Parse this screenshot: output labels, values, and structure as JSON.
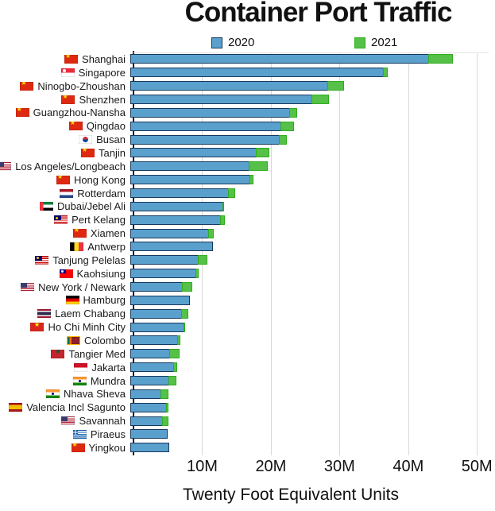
{
  "title": "Container Port Traffic",
  "xlabel": "Twenty Foot Equivalent Units",
  "legend": [
    {
      "label": "2020",
      "color": "#5aa0cd",
      "border": "#17395e"
    },
    {
      "label": "2021",
      "color": "#56c048",
      "border": "#2fae1e"
    }
  ],
  "colors": {
    "bar_2020_fill": "#5aa0cd",
    "bar_2020_border": "#17395e",
    "bar_2021_fill": "#56c048",
    "bar_2021_border": "#2fae1e",
    "gridline": "#d8d8d8",
    "axis_line": "#222222"
  },
  "chart_data": {
    "type": "bar",
    "orientation": "horizontal",
    "title": "Container Port Traffic",
    "xlabel": "Twenty Foot Equivalent Units",
    "unit": "millions of TEU",
    "legend_position": "top",
    "series_names": [
      "2020",
      "2021"
    ],
    "note": "2021 shown as green extension beyond 2020 bar when traffic grew",
    "xlim": [
      0,
      52.6
    ],
    "x_ticks": [
      {
        "label": "10M",
        "value": 10
      },
      {
        "label": "20M",
        "value": 20
      },
      {
        "label": "30M",
        "value": 30
      },
      {
        "label": "40M",
        "value": 40
      },
      {
        "label": "50M",
        "value": 50
      }
    ],
    "ports": [
      {
        "name": "Shanghai",
        "flag": "china",
        "v2020": 43.5,
        "v2021": 47.0
      },
      {
        "name": "Singapore",
        "flag": "singapore",
        "v2020": 36.9,
        "v2021": 37.5
      },
      {
        "name": "Ninogbo-Zhoushan",
        "flag": "china",
        "v2020": 28.8,
        "v2021": 31.1
      },
      {
        "name": "Shenzhen",
        "flag": "china",
        "v2020": 26.5,
        "v2021": 28.9
      },
      {
        "name": "Guangzhou-Nansha",
        "flag": "china",
        "v2020": 23.2,
        "v2021": 24.3
      },
      {
        "name": "Qingdao",
        "flag": "china",
        "v2020": 22.0,
        "v2021": 23.8
      },
      {
        "name": "Busan",
        "flag": "south-korea",
        "v2020": 21.8,
        "v2021": 22.8
      },
      {
        "name": "Tanjin",
        "flag": "china",
        "v2020": 18.4,
        "v2021": 20.3
      },
      {
        "name": "Los Angeles/Longbeach",
        "flag": "usa",
        "v2020": 17.3,
        "v2021": 20.0
      },
      {
        "name": "Hong Kong",
        "flag": "china",
        "v2020": 17.5,
        "v2021": 17.9
      },
      {
        "name": "Rotterdam",
        "flag": "netherlands",
        "v2020": 14.4,
        "v2021": 15.3
      },
      {
        "name": "Dubai/Jebel Ali",
        "flag": "uae",
        "v2020": 13.5,
        "v2021": 13.7
      },
      {
        "name": "Pert Kelang",
        "flag": "malaysia",
        "v2020": 13.2,
        "v2021": 13.8
      },
      {
        "name": "Xiamen",
        "flag": "china",
        "v2020": 11.4,
        "v2021": 12.1
      },
      {
        "name": "Antwerp",
        "flag": "belgium",
        "v2020": 12.0,
        "v2021": 12.0
      },
      {
        "name": "Tanjung Pelelas",
        "flag": "malaysia",
        "v2020": 9.9,
        "v2021": 11.2
      },
      {
        "name": "Kaohsiung",
        "flag": "taiwan",
        "v2020": 9.6,
        "v2021": 9.9
      },
      {
        "name": "New York / Newark",
        "flag": "usa",
        "v2020": 7.6,
        "v2021": 9.0
      },
      {
        "name": "Hamburg",
        "flag": "germany",
        "v2020": 8.7,
        "v2021": 8.7
      },
      {
        "name": "Laem Chabang",
        "flag": "thailand",
        "v2020": 7.5,
        "v2021": 8.5
      },
      {
        "name": "Ho Chi Minh City",
        "flag": "vietnam",
        "v2020": 7.9,
        "v2021": 8.0
      },
      {
        "name": "Colombo",
        "flag": "sri-lanka",
        "v2020": 6.9,
        "v2021": 7.3
      },
      {
        "name": "Tangier Med",
        "flag": "morocco",
        "v2020": 5.8,
        "v2021": 7.2
      },
      {
        "name": "Jakarta",
        "flag": "indonesia",
        "v2020": 6.4,
        "v2021": 6.8
      },
      {
        "name": "Mundra",
        "flag": "india",
        "v2020": 5.7,
        "v2021": 6.7
      },
      {
        "name": "Nhava Sheva",
        "flag": "india",
        "v2020": 4.5,
        "v2021": 5.6
      },
      {
        "name": "Valencia Incl Sagunto",
        "flag": "spain",
        "v2020": 5.3,
        "v2021": 5.6
      },
      {
        "name": "Savannah",
        "flag": "usa",
        "v2020": 4.7,
        "v2021": 5.6
      },
      {
        "name": "Piraeus",
        "flag": "greece",
        "v2020": 5.4,
        "v2021": 5.4
      },
      {
        "name": "Yingkou",
        "flag": "china",
        "v2020": 5.7,
        "v2021": 5.7
      }
    ]
  }
}
